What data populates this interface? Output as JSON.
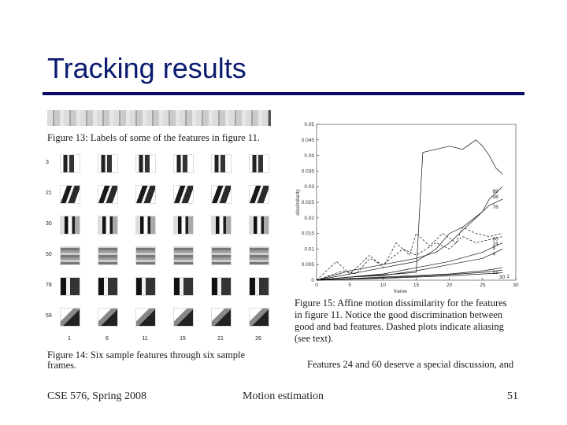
{
  "slide": {
    "title": "Tracking results"
  },
  "figures": {
    "fig13_caption": "Figure 13: Labels of some of the features in figure 11.",
    "fig14": {
      "caption_line1": "Figure 14: Six sample features through six sample",
      "caption_line2": "frames.",
      "row_labels": [
        "3",
        "21",
        "30",
        "50",
        "78",
        "59"
      ],
      "col_labels": [
        "1",
        "6",
        "11",
        "15",
        "21",
        "26"
      ]
    },
    "fig15": {
      "caption_lines": [
        "Figure 15: Affine motion dissimilarity for the features",
        "in figure 11. Notice the good discrimination between",
        "good and bad features. Dashed plots indicate aliasing",
        "(see text)."
      ],
      "after_text": "Features 24 and 60 deserve a special discussion, and"
    }
  },
  "chart_data": {
    "type": "line",
    "xlabel": "frame",
    "ylabel": "dissimilarity",
    "xlim": [
      0,
      30
    ],
    "ylim": [
      0,
      0.05
    ],
    "x_ticks": [
      "0",
      "5",
      "10",
      "15",
      "20",
      "25",
      "30"
    ],
    "y_ticks": [
      "0",
      "0.005",
      "0.01",
      "0.015",
      "0.02",
      "0.025",
      "0.03",
      "0.035",
      "0.04",
      "0.045",
      "0.05"
    ],
    "grid": false,
    "feature_labels": [
      "89",
      "58",
      "78",
      "60",
      "24",
      "3",
      "4",
      "21",
      "30",
      "1"
    ],
    "series": [
      {
        "label": "89",
        "style": "solid",
        "x": [
          0,
          4,
          8,
          12,
          15,
          16,
          18,
          20,
          22,
          24,
          25,
          26,
          27,
          28
        ],
        "y": [
          0,
          0.0008,
          0.0015,
          0.002,
          0.0025,
          0.041,
          0.042,
          0.043,
          0.042,
          0.045,
          0.043,
          0.04,
          0.036,
          0.034
        ]
      },
      {
        "label": "58",
        "style": "solid",
        "x": [
          0,
          5,
          10,
          15,
          18,
          20,
          22,
          25,
          26,
          28
        ],
        "y": [
          0,
          0.002,
          0.004,
          0.006,
          0.01,
          0.015,
          0.017,
          0.022,
          0.026,
          0.03
        ]
      },
      {
        "label": "78",
        "style": "solid",
        "x": [
          0,
          5,
          10,
          15,
          18,
          20,
          22,
          24,
          25,
          26,
          28
        ],
        "y": [
          0,
          0.003,
          0.005,
          0.007,
          0.009,
          0.012,
          0.016,
          0.02,
          0.022,
          0.024,
          0.026
        ]
      },
      {
        "label": "60",
        "style": "dashed",
        "x": [
          0,
          3,
          5,
          8,
          10,
          12,
          14,
          15,
          17,
          19,
          21,
          22,
          24,
          26,
          28
        ],
        "y": [
          0,
          0.006,
          0.002,
          0.008,
          0.004,
          0.012,
          0.008,
          0.015,
          0.011,
          0.015,
          0.012,
          0.017,
          0.015,
          0.014,
          0.015
        ]
      },
      {
        "label": "24",
        "style": "dashed",
        "x": [
          0,
          4,
          6,
          8,
          10,
          13,
          15,
          18,
          20,
          22,
          24,
          26,
          28
        ],
        "y": [
          0,
          0.003,
          0.002,
          0.007,
          0.005,
          0.01,
          0.008,
          0.012,
          0.01,
          0.014,
          0.012,
          0.013,
          0.014
        ]
      },
      {
        "label": "3",
        "style": "solid",
        "x": [
          0,
          5,
          10,
          15,
          20,
          25,
          28
        ],
        "y": [
          0,
          0.001,
          0.002,
          0.004,
          0.006,
          0.009,
          0.012
        ]
      },
      {
        "label": "4",
        "style": "solid",
        "x": [
          0,
          5,
          10,
          15,
          20,
          25,
          28
        ],
        "y": [
          0,
          0.001,
          0.0015,
          0.003,
          0.005,
          0.007,
          0.01
        ]
      },
      {
        "label": "21",
        "style": "solid",
        "x": [
          0,
          5,
          10,
          15,
          20,
          25,
          28
        ],
        "y": [
          0,
          0.0005,
          0.001,
          0.0015,
          0.002,
          0.003,
          0.004
        ]
      },
      {
        "label": "30",
        "style": "solid",
        "x": [
          0,
          5,
          10,
          15,
          20,
          25,
          28
        ],
        "y": [
          0,
          0.0004,
          0.0008,
          0.0012,
          0.0018,
          0.0025,
          0.0032
        ]
      },
      {
        "label": "1",
        "style": "solid",
        "x": [
          0,
          5,
          10,
          15,
          20,
          25,
          28
        ],
        "y": [
          0,
          0.0003,
          0.0006,
          0.001,
          0.0014,
          0.002,
          0.0024
        ]
      }
    ]
  },
  "footer": {
    "course": "CSE 576, Spring 2008",
    "topic": "Motion estimation",
    "page": "51"
  }
}
